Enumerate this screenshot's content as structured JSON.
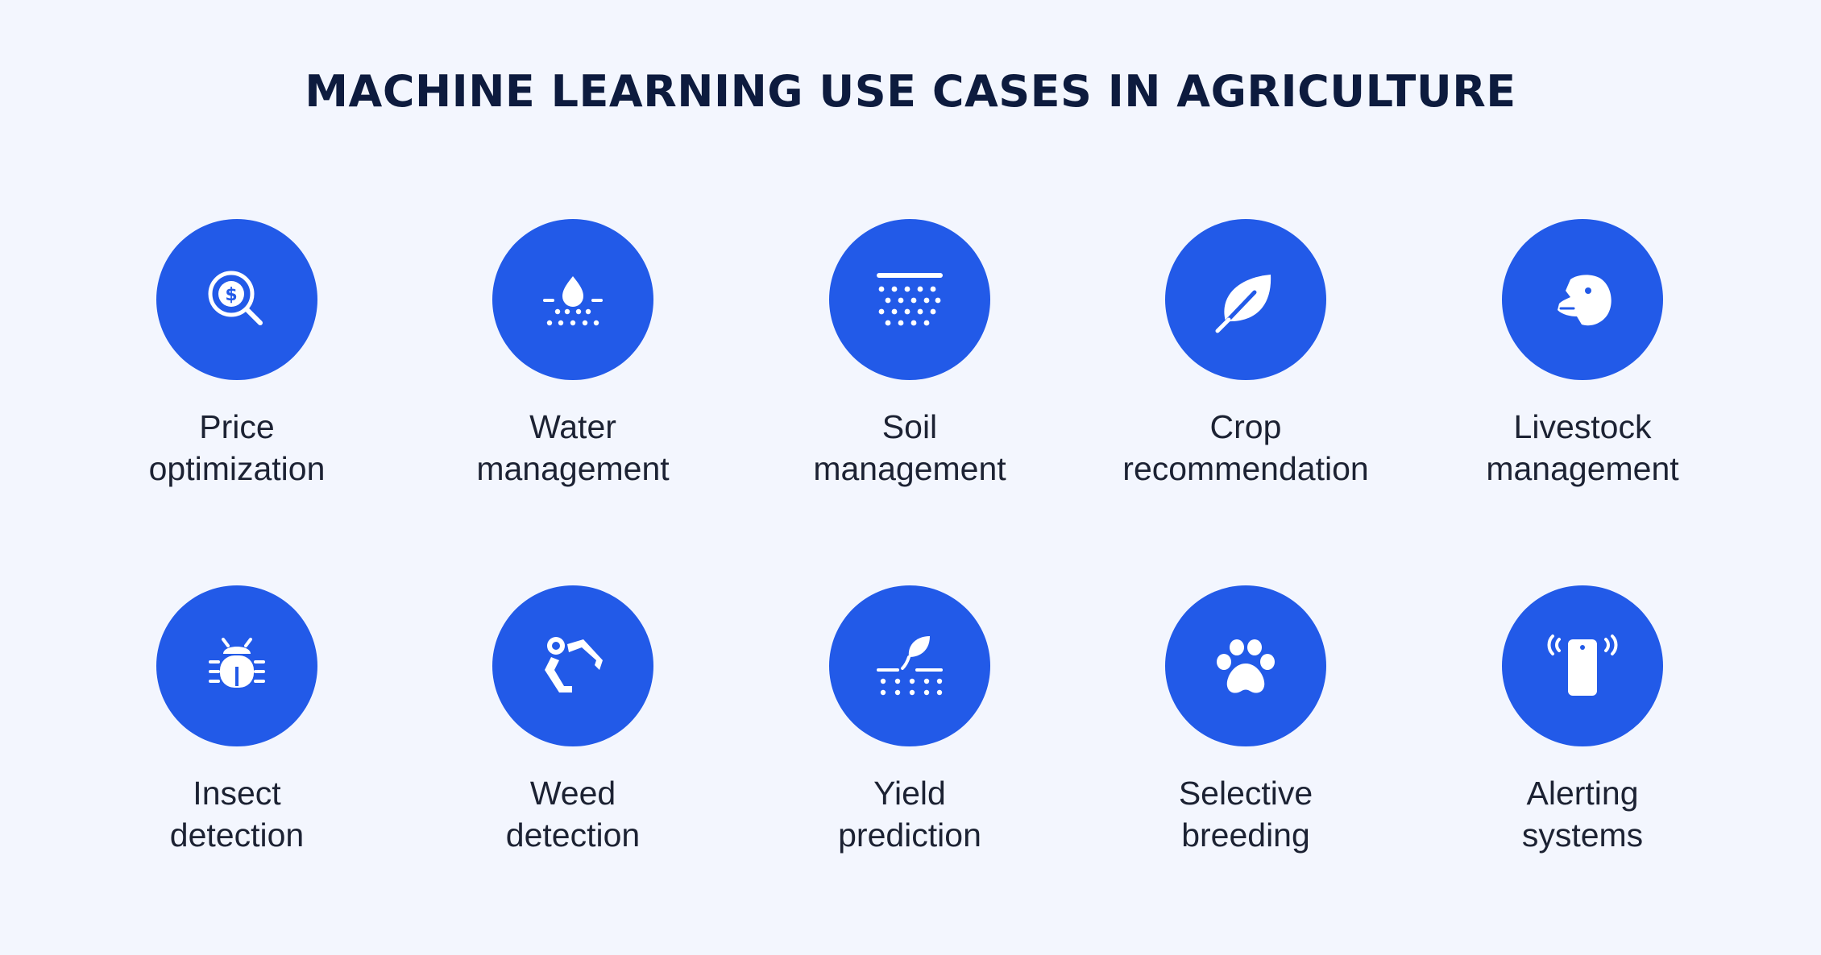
{
  "title": "MACHINE LEARNING USE CASES IN AGRICULTURE",
  "accent_color": "#225ae8",
  "background_color": "#f3f6fe",
  "rows": [
    [
      {
        "icon": "price-search-icon",
        "line1": "Price",
        "line2": "optimization"
      },
      {
        "icon": "water-drop-icon",
        "line1": "Water",
        "line2": "management"
      },
      {
        "icon": "soil-icon",
        "line1": "Soil",
        "line2": "management"
      },
      {
        "icon": "leaf-icon",
        "line1": "Crop",
        "line2": "recommendation"
      },
      {
        "icon": "horse-head-icon",
        "line1": "Livestock",
        "line2": "management"
      }
    ],
    [
      {
        "icon": "bug-icon",
        "line1": "Insect",
        "line2": "detection"
      },
      {
        "icon": "robot-arm-icon",
        "line1": "Weed",
        "line2": "detection"
      },
      {
        "icon": "sprout-icon",
        "line1": "Yield",
        "line2": "prediction"
      },
      {
        "icon": "paw-icon",
        "line1": "Selective",
        "line2": "breeding"
      },
      {
        "icon": "vibrating-phone-icon",
        "line1": "Alerting",
        "line2": "systems"
      }
    ]
  ]
}
